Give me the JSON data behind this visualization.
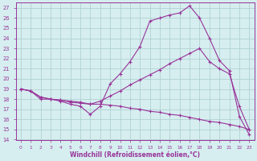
{
  "background_color": "#d6eef0",
  "grid_color": "#aacccc",
  "line_color": "#993399",
  "xlim": [
    -0.5,
    23.5
  ],
  "ylim": [
    14,
    27.5
  ],
  "xticks": [
    0,
    1,
    2,
    3,
    4,
    5,
    6,
    7,
    8,
    9,
    10,
    11,
    12,
    13,
    14,
    15,
    16,
    17,
    18,
    19,
    20,
    21,
    22,
    23
  ],
  "yticks": [
    14,
    15,
    16,
    17,
    18,
    19,
    20,
    21,
    22,
    23,
    24,
    25,
    26,
    27
  ],
  "xlabel": "Windchill (Refroidissement éolien,°C)",
  "series1_x": [
    0,
    1,
    2,
    3,
    4,
    5,
    6,
    7,
    8,
    9,
    10,
    11,
    12,
    13,
    14,
    15,
    16,
    17,
    18,
    19,
    20,
    21,
    22,
    23
  ],
  "series1_y": [
    19.0,
    18.8,
    18.0,
    18.0,
    17.8,
    17.5,
    17.3,
    16.5,
    17.3,
    19.5,
    20.5,
    21.7,
    23.2,
    25.7,
    26.0,
    26.3,
    26.5,
    27.2,
    26.0,
    24.0,
    21.8,
    20.8,
    16.3,
    14.5
  ],
  "series2_x": [
    0,
    1,
    2,
    3,
    4,
    5,
    6,
    7,
    8,
    9,
    10,
    11,
    12,
    13,
    14,
    15,
    16,
    17,
    18,
    19,
    20,
    21,
    22,
    23
  ],
  "series2_y": [
    19.0,
    18.8,
    18.2,
    18.0,
    17.9,
    17.7,
    17.6,
    17.5,
    17.8,
    18.3,
    18.8,
    19.4,
    19.9,
    20.4,
    20.9,
    21.5,
    22.0,
    22.5,
    23.0,
    21.7,
    21.0,
    20.5,
    17.3,
    15.0
  ],
  "series3_x": [
    0,
    1,
    2,
    3,
    4,
    5,
    6,
    7,
    8,
    9,
    10,
    11,
    12,
    13,
    14,
    15,
    16,
    17,
    18,
    19,
    20,
    21,
    22,
    23
  ],
  "series3_y": [
    19.0,
    18.8,
    18.2,
    18.0,
    17.9,
    17.8,
    17.7,
    17.5,
    17.5,
    17.4,
    17.3,
    17.1,
    17.0,
    16.8,
    16.7,
    16.5,
    16.4,
    16.2,
    16.0,
    15.8,
    15.7,
    15.5,
    15.3,
    15.0
  ]
}
